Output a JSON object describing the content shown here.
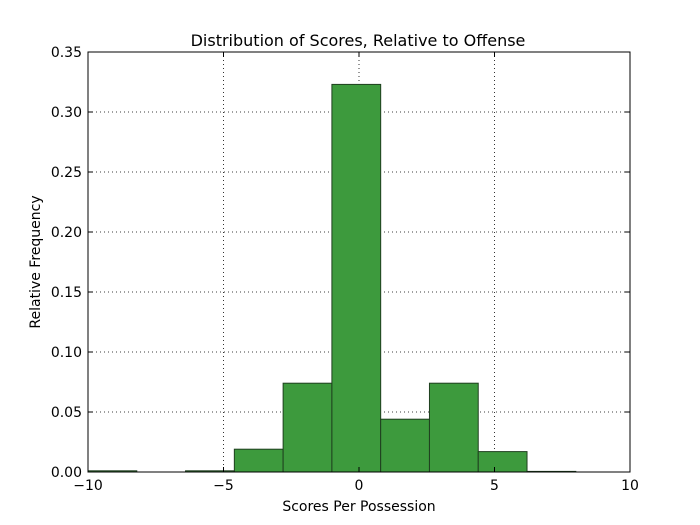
{
  "chart_data": {
    "type": "bar",
    "title": "Distribution of Scores, Relative to Offense",
    "xlabel": "Scores Per Possession",
    "ylabel": "Relative Frequency",
    "xlim": [
      -10,
      10
    ],
    "ylim": [
      0,
      0.35
    ],
    "grid": true,
    "bar_color": "#3d9a3d",
    "bar_edge_color": "#1f3f1f",
    "xticks": [
      -10,
      -5,
      0,
      5,
      10
    ],
    "xtick_labels": [
      "−10",
      "−5",
      "0",
      "5",
      "10"
    ],
    "yticks": [
      0.0,
      0.05,
      0.1,
      0.15,
      0.2,
      0.25,
      0.3,
      0.35
    ],
    "ytick_labels": [
      "0.00",
      "0.05",
      "0.10",
      "0.15",
      "0.20",
      "0.25",
      "0.30",
      "0.35"
    ],
    "bins": [
      {
        "x0": -10.0,
        "x1": -8.2,
        "value": 0.001
      },
      {
        "x0": -8.2,
        "x1": -6.4,
        "value": 0.0
      },
      {
        "x0": -6.4,
        "x1": -4.6,
        "value": 0.001
      },
      {
        "x0": -4.6,
        "x1": -2.8,
        "value": 0.019
      },
      {
        "x0": -2.8,
        "x1": -1.0,
        "value": 0.074
      },
      {
        "x0": -1.0,
        "x1": 0.8,
        "value": 0.323
      },
      {
        "x0": 0.8,
        "x1": 2.6,
        "value": 0.044
      },
      {
        "x0": 2.6,
        "x1": 4.4,
        "value": 0.074
      },
      {
        "x0": 4.4,
        "x1": 6.2,
        "value": 0.017
      },
      {
        "x0": 6.2,
        "x1": 8.0,
        "value": 0.0005
      },
      {
        "x0": 8.0,
        "x1": 9.8,
        "value": 0.0
      }
    ]
  }
}
